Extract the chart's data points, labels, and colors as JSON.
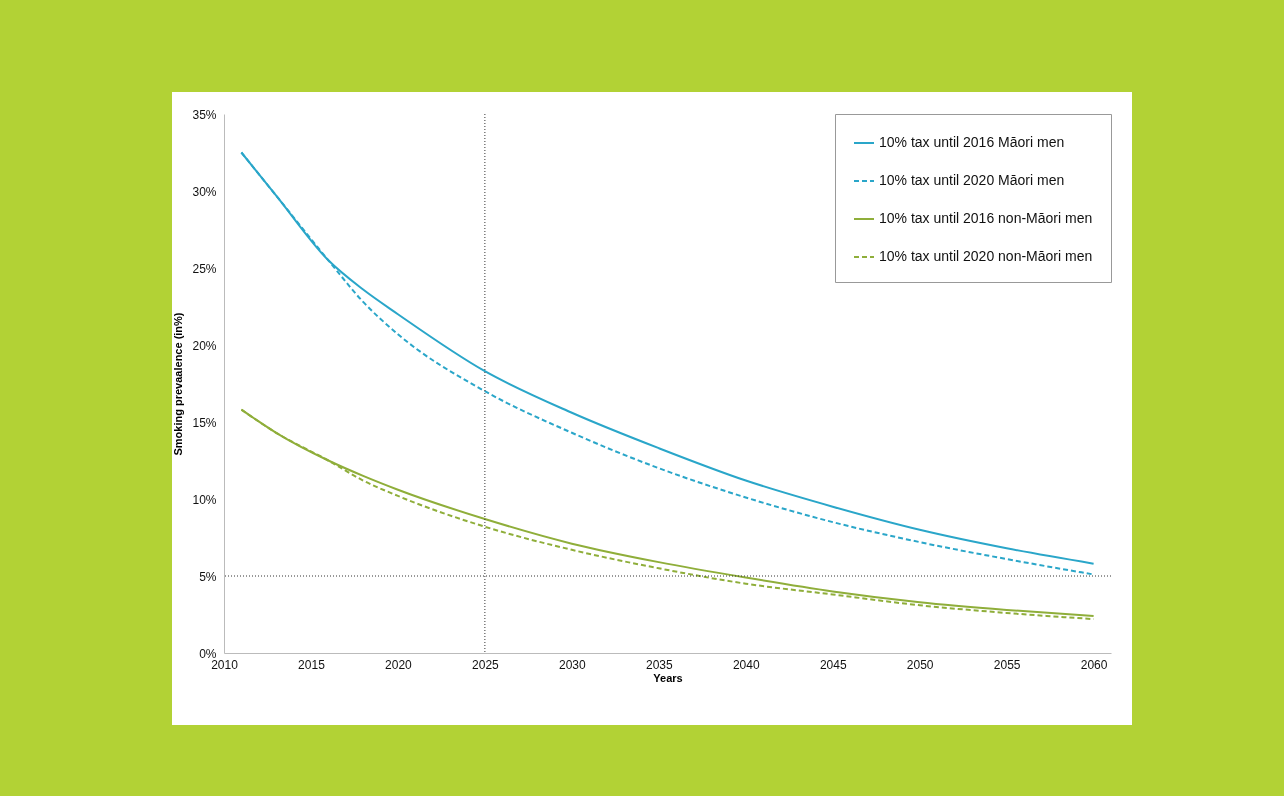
{
  "chart_data": {
    "type": "line",
    "xlabel": "Years",
    "ylabel": "Smoking prevaalence (in%)",
    "xlim": [
      2010,
      2061
    ],
    "xticks": [
      2010,
      2015,
      2020,
      2025,
      2030,
      2035,
      2040,
      2045,
      2050,
      2055,
      2060
    ],
    "ylim": [
      0,
      35
    ],
    "yticks": [
      {
        "value": 0,
        "label": "0%"
      },
      {
        "value": 5,
        "label": "5%"
      },
      {
        "value": 10,
        "label": "10%"
      },
      {
        "value": 15,
        "label": "15%"
      },
      {
        "value": 20,
        "label": "20%"
      },
      {
        "value": 25,
        "label": "25%"
      },
      {
        "value": 30,
        "label": "30%"
      },
      {
        "value": 35,
        "label": "35%"
      }
    ],
    "x": [
      2011,
      2013,
      2016,
      2018,
      2020,
      2025,
      2030,
      2035,
      2040,
      2045,
      2050,
      2055,
      2060
    ],
    "series": [
      {
        "name": "10% tax until 2016 Māori men",
        "color": "#2aa6c9",
        "line_style": "solid",
        "values": [
          32.5,
          29.7,
          25.5,
          23.6,
          22.0,
          18.3,
          15.6,
          13.3,
          11.2,
          9.5,
          8.0,
          6.8,
          5.8
        ]
      },
      {
        "name": "10% tax until 2020 Māori men",
        "color": "#2aa6c9",
        "line_style": "dashed",
        "values": [
          32.5,
          29.7,
          25.5,
          22.8,
          20.7,
          17.0,
          14.3,
          12.0,
          10.1,
          8.5,
          7.2,
          6.1,
          5.1
        ]
      },
      {
        "name": "10% tax until 2016 non-Māori men",
        "color": "#8fae3a",
        "line_style": "solid",
        "values": [
          15.8,
          14.3,
          12.5,
          11.5,
          10.6,
          8.7,
          7.1,
          5.9,
          4.9,
          4.0,
          3.3,
          2.8,
          2.4
        ]
      },
      {
        "name": "10% tax until 2020 non-Māori men",
        "color": "#8fae3a",
        "line_style": "dashed",
        "values": [
          15.8,
          14.3,
          12.5,
          11.2,
          10.2,
          8.2,
          6.7,
          5.5,
          4.5,
          3.8,
          3.1,
          2.6,
          2.2
        ]
      }
    ],
    "ref_lines": [
      {
        "axis": "x",
        "value": 2025,
        "color": "#333333",
        "line_style": "dotted"
      },
      {
        "axis": "y",
        "value": 5,
        "color": "#333333",
        "line_style": "dotted"
      }
    ],
    "grid": false,
    "legend": "top right"
  }
}
